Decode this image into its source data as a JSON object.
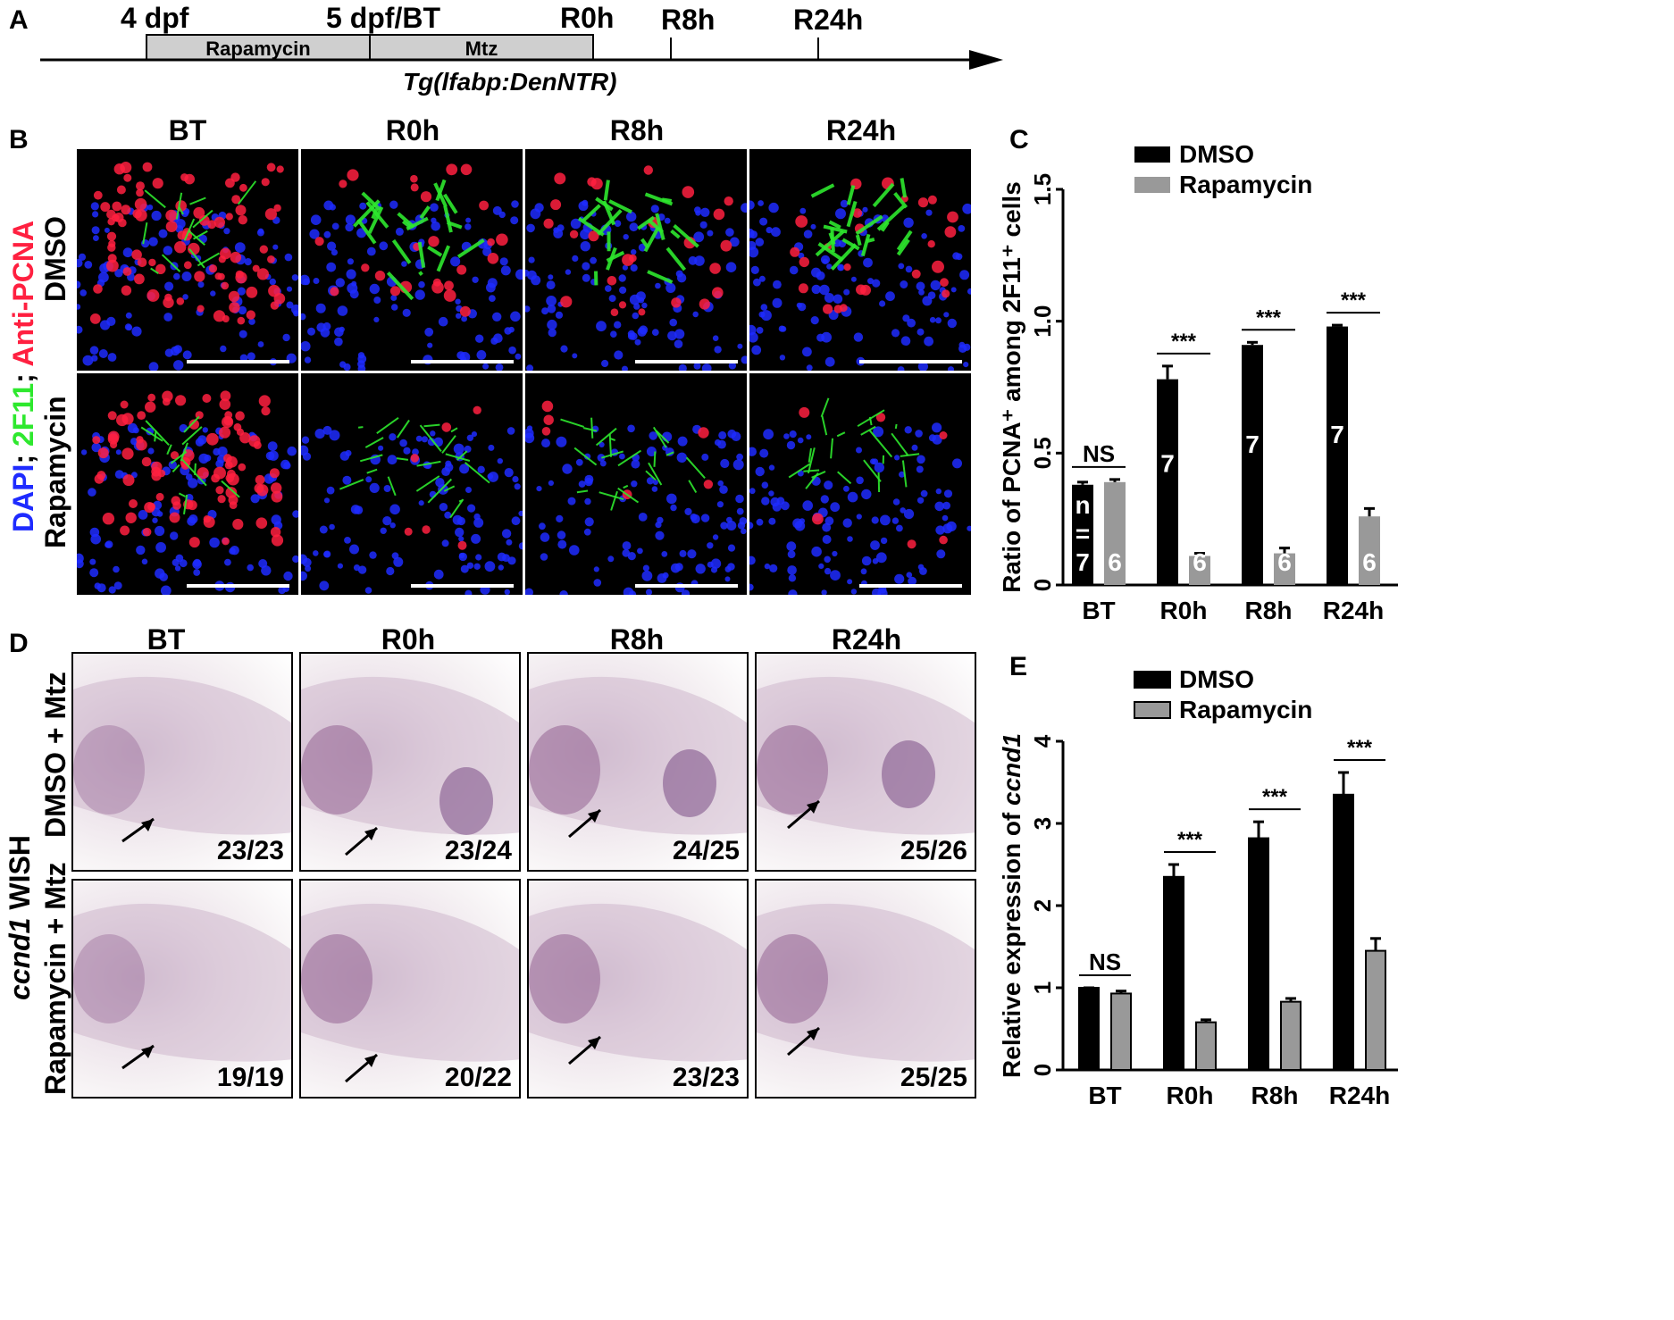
{
  "panel_labels": {
    "a": "A",
    "b": "B",
    "c": "C",
    "d": "D",
    "e": "E"
  },
  "timeline": {
    "labels": [
      "4 dpf",
      "5 dpf/BT",
      "R0h",
      "R8h",
      "R24h"
    ],
    "boxes": [
      "Rapamycin",
      "Mtz"
    ],
    "transgene": "Tg(lfabp:DenNTR)"
  },
  "panel_b": {
    "columns": [
      "BT",
      "R0h",
      "R8h",
      "R24h"
    ],
    "rows": [
      "DMSO",
      "Rapamycin"
    ],
    "stain_label": {
      "dapi": "DAPI",
      "sep1": "; ",
      "f11": "2F11",
      "sep2": "; ",
      "pcna": "Anti-PCNA"
    },
    "colors": {
      "dapi": "#1e2bff",
      "f11": "#2ee82e",
      "pcna": "#ff2040"
    }
  },
  "panel_d": {
    "columns": [
      "BT",
      "R0h",
      "R8h",
      "R24h"
    ],
    "rows": [
      "DMSO + Mtz",
      "Rapamycin + Mtz"
    ],
    "side_label": {
      "gene": "ccnd1",
      "rest": " WISH"
    },
    "counts": [
      [
        "23/23",
        "23/24",
        "24/25",
        "25/26"
      ],
      [
        "19/19",
        "20/22",
        "23/23",
        "25/25"
      ]
    ]
  },
  "chart_data": [
    {
      "panel": "C",
      "type": "bar",
      "categories": [
        "BT",
        "R0h",
        "R8h",
        "R24h"
      ],
      "series": [
        {
          "name": "DMSO",
          "color": "#000000",
          "values": [
            0.38,
            0.78,
            0.91,
            0.98
          ],
          "errors": [
            0.01,
            0.05,
            0.01,
            0.005
          ],
          "n": [
            "n\n=\n7",
            "7",
            "7",
            "7"
          ]
        },
        {
          "name": "Rapamycin",
          "color": "#999999",
          "values": [
            0.39,
            0.11,
            0.12,
            0.26
          ],
          "errors": [
            0.01,
            0.01,
            0.02,
            0.03
          ],
          "n": [
            "6",
            "6",
            "6",
            "6"
          ]
        }
      ],
      "ylabel": "Ratio of PCNA⁺ among 2F11⁺ cells",
      "ylim": [
        0,
        1.5
      ],
      "yticks": [
        "0",
        "0.5",
        "1.0",
        "1.5"
      ],
      "significance": [
        "NS",
        "***",
        "***",
        "***"
      ],
      "legend": "top"
    },
    {
      "panel": "E",
      "type": "bar",
      "categories": [
        "BT",
        "R0h",
        "R8h",
        "R24h"
      ],
      "series": [
        {
          "name": "DMSO",
          "color": "#000000",
          "values": [
            1.0,
            2.35,
            2.82,
            3.35
          ],
          "errors": [
            0.0,
            0.15,
            0.2,
            0.27
          ]
        },
        {
          "name": "Rapamycin",
          "color": "#999999",
          "values": [
            0.93,
            0.58,
            0.83,
            1.45
          ],
          "errors": [
            0.03,
            0.03,
            0.04,
            0.15
          ]
        }
      ],
      "ylabel_prefix": "Relative expression of ",
      "ylabel_gene": "ccnd1",
      "ylim": [
        0,
        4
      ],
      "yticks": [
        "0",
        "1",
        "2",
        "3",
        "4"
      ],
      "significance": [
        "NS",
        "***",
        "***",
        "***"
      ],
      "legend": "top"
    }
  ]
}
